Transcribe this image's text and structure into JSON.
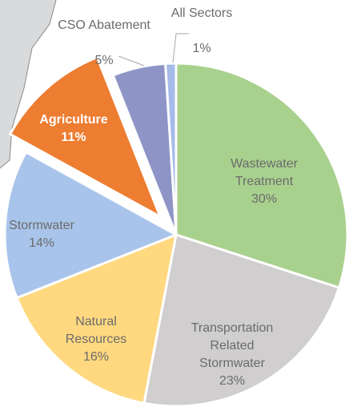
{
  "chart_data": {
    "type": "pie",
    "categories": [
      "Wastewater Treatment",
      "Transportation Related Stormwater",
      "Natural Resources",
      "Stormwater",
      "Agriculture",
      "CSO Abatement",
      "All Sectors"
    ],
    "values": [
      30,
      23,
      16,
      14,
      11,
      5,
      1
    ],
    "value_labels": [
      "30%",
      "23%",
      "16%",
      "14%",
      "11%",
      "5%",
      "1%"
    ],
    "colors": [
      "#a9d18e",
      "#d0cece",
      "#ffd880",
      "#a9c4eb",
      "#ed7d31",
      "#8e95c6",
      "#a6bbe9"
    ],
    "exploded": [
      "Agriculture"
    ]
  }
}
